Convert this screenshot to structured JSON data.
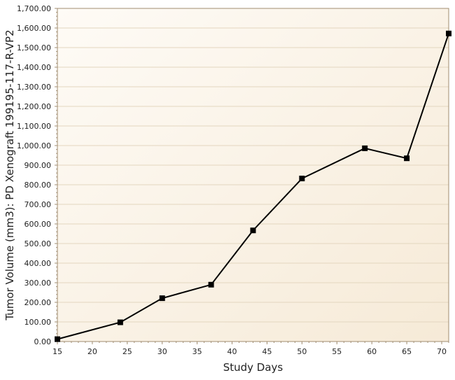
{
  "chart_data": {
    "type": "line",
    "xlabel": "Study Days",
    "ylabel": "Tumor Volume (mm3): PD Xenograft 199195-117-R-VP2",
    "xlim": [
      15,
      71
    ],
    "ylim": [
      0,
      1700
    ],
    "x_ticks": [
      15,
      20,
      25,
      30,
      35,
      40,
      45,
      50,
      55,
      60,
      65,
      70
    ],
    "y_ticks": [
      0,
      100,
      200,
      300,
      400,
      500,
      600,
      700,
      800,
      900,
      1000,
      1100,
      1200,
      1300,
      1400,
      1500,
      1600,
      1700
    ],
    "y_tick_labels": [
      "0.00",
      "100.00",
      "200.00",
      "300.00",
      "400.00",
      "500.00",
      "600.00",
      "700.00",
      "800.00",
      "900.00",
      "1,000.00",
      "1,100.00",
      "1,200.00",
      "1,300.00",
      "1,400.00",
      "1,500.00",
      "1,600.00",
      "1,700.00"
    ],
    "series": [
      {
        "x": [
          15,
          24,
          30,
          37,
          43,
          50,
          59,
          65,
          71
        ],
        "y": [
          12,
          98,
          221,
          290,
          567,
          832,
          986,
          935,
          1572
        ]
      }
    ],
    "grid": {
      "horizontal": true,
      "vertical": false
    },
    "legend": "none",
    "colors": {
      "line": "#000000",
      "marker": "#000000",
      "grid": "#e3d6bf",
      "plot_bg_light": "#fefbf6",
      "plot_bg_dark": "#f6ead7",
      "axis": "#a08c70"
    },
    "marker": "square"
  }
}
